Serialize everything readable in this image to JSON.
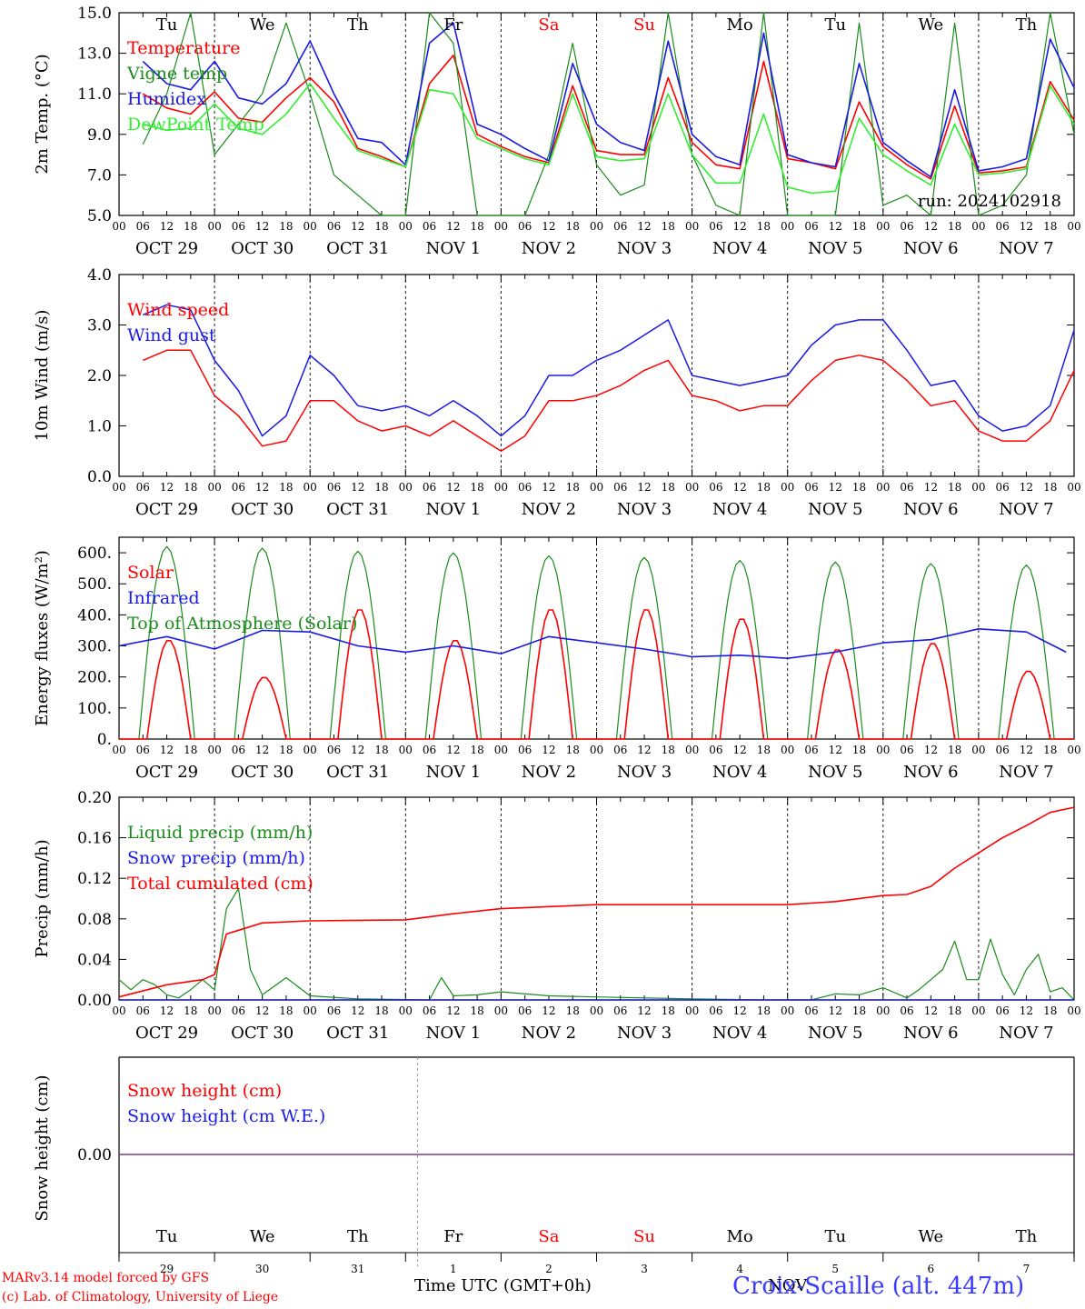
{
  "page": {
    "credit_line1": "MARv3.14 model forced by GFS",
    "credit_line2": "(c) Lab. of Climatology, University of Liege",
    "xaxis_title": "Time UTC (GMT+0h)",
    "station": "Croix-Scaille (alt. 447m)",
    "month_label": "NOV",
    "colors": {
      "red": "#ff0000",
      "green": "#1a8c1a",
      "blue": "#1a1ae6",
      "lime": "#33ee33",
      "purple": "#7a3a8c",
      "text": "#000000"
    }
  },
  "chart_data": [
    {
      "id": "temp",
      "type": "line",
      "ylabel": "2m Temp. (°C)",
      "ylim": [
        5.0,
        15.0
      ],
      "yticks": [
        "5.0",
        "7.0",
        "9.0",
        "11.0",
        "13.0",
        "15.0"
      ],
      "top_days": [
        "Tu",
        "We",
        "Th",
        "Fr",
        "Sa",
        "Su",
        "Mo",
        "Tu",
        "We",
        "Th"
      ],
      "weekend_days": [
        4,
        5
      ],
      "run_label": "run: 2024102918",
      "x_hours": [
        0,
        6,
        12,
        18,
        24,
        30,
        36,
        42,
        48,
        54,
        60,
        66,
        72,
        78,
        84,
        90,
        96,
        102,
        108,
        114,
        120,
        126,
        132,
        138,
        144,
        150,
        156,
        162,
        168,
        174,
        180,
        186,
        192,
        198,
        204,
        210,
        216,
        222,
        228,
        234
      ],
      "series": [
        {
          "name": "Temperature",
          "color": "#ff0000",
          "values": [
            11.0,
            10.3,
            10.0,
            11.1,
            9.8,
            9.6,
            10.8,
            11.8,
            10.6,
            8.3,
            7.9,
            7.4,
            11.5,
            12.9,
            9.0,
            8.4,
            7.9,
            7.6,
            11.4,
            8.2,
            8.0,
            8.0,
            11.8,
            8.6,
            7.5,
            7.3,
            12.6,
            7.8,
            7.6,
            7.3,
            10.6,
            8.4,
            7.5,
            6.8,
            10.4,
            7.1,
            7.2,
            7.4,
            11.6,
            9.7
          ]
        },
        {
          "name": "Vigne temp",
          "color": "#1a8c1a",
          "values": [
            8.5,
            11.0,
            15.0,
            8.0,
            9.5,
            11.0,
            14.5,
            11.0,
            7.0,
            6.0,
            5.0,
            5.0,
            15.0,
            13.5,
            5.0,
            5.0,
            5.0,
            8.0,
            13.5,
            7.5,
            6.0,
            6.5,
            15.0,
            8.0,
            5.5,
            5.0,
            15.0,
            5.0,
            5.0,
            5.0,
            14.5,
            5.5,
            6.0,
            5.0,
            14.5,
            5.0,
            5.5,
            7.0,
            15.0,
            9.0
          ]
        },
        {
          "name": "Humidex",
          "color": "#1a1ae6",
          "values": [
            12.6,
            11.5,
            11.2,
            12.6,
            10.8,
            10.5,
            11.5,
            13.6,
            11.0,
            8.8,
            8.6,
            7.5,
            13.5,
            14.5,
            9.5,
            9.0,
            8.3,
            7.7,
            12.5,
            9.5,
            8.6,
            8.2,
            13.6,
            9.0,
            7.9,
            7.5,
            14.0,
            8.0,
            7.6,
            7.4,
            12.5,
            8.6,
            7.7,
            6.9,
            11.2,
            7.2,
            7.4,
            7.8,
            13.7,
            11.3
          ]
        },
        {
          "name": "DewPoint Temp",
          "color": "#33ee33",
          "values": [
            9.5,
            9.2,
            9.3,
            10.5,
            9.3,
            9.0,
            10.0,
            11.5,
            9.8,
            8.2,
            7.8,
            7.4,
            11.2,
            11.0,
            8.8,
            8.3,
            7.8,
            7.5,
            11.0,
            7.9,
            7.7,
            7.8,
            11.0,
            8.0,
            6.6,
            6.6,
            10.0,
            6.4,
            6.1,
            6.2,
            9.8,
            8.0,
            7.2,
            6.5,
            9.5,
            7.0,
            7.1,
            7.3,
            11.4,
            9.5
          ]
        }
      ]
    },
    {
      "id": "wind",
      "type": "line",
      "ylabel": "10m Wind (m/s)",
      "ylim": [
        0.0,
        4.0
      ],
      "yticks": [
        "0.0",
        "1.0",
        "2.0",
        "3.0",
        "4.0"
      ],
      "x_hours": [
        0,
        6,
        12,
        18,
        24,
        30,
        36,
        42,
        48,
        54,
        60,
        66,
        72,
        78,
        84,
        90,
        96,
        102,
        108,
        114,
        120,
        126,
        132,
        138,
        144,
        150,
        156,
        162,
        168,
        174,
        180,
        186,
        192,
        198,
        204,
        210,
        216,
        222,
        228,
        234
      ],
      "series": [
        {
          "name": "Wind speed",
          "color": "#ff0000",
          "values": [
            2.3,
            2.5,
            2.5,
            1.6,
            1.2,
            0.6,
            0.7,
            1.5,
            1.5,
            1.1,
            0.9,
            1.0,
            0.8,
            1.1,
            0.8,
            0.5,
            0.8,
            1.5,
            1.5,
            1.6,
            1.8,
            2.1,
            2.3,
            1.6,
            1.5,
            1.3,
            1.4,
            1.4,
            1.9,
            2.3,
            2.4,
            2.3,
            1.9,
            1.4,
            1.5,
            0.9,
            0.7,
            0.7,
            1.1,
            2.1
          ]
        },
        {
          "name": "Wind gust",
          "color": "#1a1ae6",
          "values": [
            3.2,
            3.4,
            3.3,
            2.3,
            1.7,
            0.8,
            1.2,
            2.4,
            2.0,
            1.4,
            1.3,
            1.4,
            1.2,
            1.5,
            1.2,
            0.8,
            1.2,
            2.0,
            2.0,
            2.3,
            2.5,
            2.8,
            3.1,
            2.0,
            1.9,
            1.8,
            1.9,
            2.0,
            2.6,
            3.0,
            3.1,
            3.1,
            2.5,
            1.8,
            1.9,
            1.2,
            0.9,
            1.0,
            1.4,
            2.9
          ]
        }
      ]
    },
    {
      "id": "flux",
      "type": "line",
      "ylabel": "Energy fluxes (W/m²)",
      "ylim": [
        0,
        650
      ],
      "yticks": [
        "0.",
        "100.",
        "200.",
        "300.",
        "400.",
        "500.",
        "600."
      ],
      "ytick_values": [
        0,
        100,
        200,
        300,
        400,
        500,
        600
      ],
      "solar_peaks": [
        320,
        200,
        420,
        320,
        420,
        420,
        390,
        290,
        310,
        220
      ],
      "toa_peaks": [
        620,
        615,
        605,
        600,
        590,
        585,
        575,
        570,
        565,
        560
      ],
      "infrared_hours": [
        0,
        12,
        24,
        36,
        48,
        60,
        72,
        84,
        96,
        108,
        120,
        132,
        144,
        156,
        168,
        180,
        192,
        204,
        216,
        228,
        238
      ],
      "infrared_values": [
        300,
        330,
        290,
        350,
        345,
        300,
        280,
        300,
        275,
        330,
        310,
        290,
        265,
        270,
        260,
        280,
        310,
        320,
        355,
        345,
        280
      ],
      "series": [
        {
          "name": "Solar",
          "color": "#ff0000"
        },
        {
          "name": "Infrared",
          "color": "#1a1ae6"
        },
        {
          "name": "Top of Atmosphere (Solar)",
          "color": "#1a8c1a"
        }
      ]
    },
    {
      "id": "precip",
      "type": "line",
      "ylabel": "Precip (mm/h)",
      "ylim": [
        0.0,
        0.2
      ],
      "yticks": [
        "0.00",
        "0.04",
        "0.08",
        "0.12",
        "0.16",
        "0.20"
      ],
      "liquid_hours": [
        0,
        3,
        6,
        9,
        12,
        15,
        18,
        21,
        24,
        27,
        30,
        33,
        36,
        42,
        48,
        60,
        78,
        81,
        84,
        90,
        96,
        108,
        120,
        144,
        162,
        174,
        180,
        186,
        192,
        198,
        201,
        204,
        207,
        210,
        213,
        216,
        219,
        222,
        225,
        228,
        231,
        234,
        237,
        240
      ],
      "liquid_values": [
        0.02,
        0.01,
        0.02,
        0.015,
        0.005,
        0.002,
        0.01,
        0.02,
        0.01,
        0.09,
        0.11,
        0.03,
        0.005,
        0.022,
        0.004,
        0.001,
        0.0,
        0.022,
        0.004,
        0.005,
        0.008,
        0.004,
        0.003,
        0.001,
        0.0,
        0.0,
        0.006,
        0.005,
        0.012,
        0.002,
        0.01,
        0.02,
        0.03,
        0.058,
        0.02,
        0.02,
        0.06,
        0.025,
        0.005,
        0.03,
        0.045,
        0.008,
        0.012,
        0.0
      ],
      "cumulated_hours": [
        0,
        12,
        21,
        24,
        27,
        36,
        48,
        72,
        84,
        96,
        120,
        144,
        168,
        180,
        192,
        198,
        204,
        210,
        216,
        222,
        228,
        234,
        240
      ],
      "cumulated_values": [
        0.003,
        0.015,
        0.02,
        0.025,
        0.065,
        0.076,
        0.078,
        0.079,
        0.085,
        0.09,
        0.094,
        0.094,
        0.094,
        0.097,
        0.103,
        0.104,
        0.112,
        0.13,
        0.145,
        0.16,
        0.172,
        0.185,
        0.19
      ],
      "series": [
        {
          "name": "Liquid precip (mm/h)",
          "color": "#1a8c1a"
        },
        {
          "name": "Snow precip (mm/h)",
          "color": "#1a1ae6"
        },
        {
          "name": "Total cumulated (cm)",
          "color": "#ff0000"
        }
      ]
    },
    {
      "id": "snow",
      "type": "line",
      "ylabel": "Snow height (cm)",
      "ytick": "0.00",
      "day_numbers": [
        "29",
        "30",
        "31",
        "1",
        "2",
        "3",
        "4",
        "5",
        "6",
        "7"
      ],
      "series": [
        {
          "name": "Snow height (cm)",
          "color": "#ff0000"
        },
        {
          "name": "Snow height (cm W.E.)",
          "color": "#1a1ae6"
        }
      ]
    }
  ],
  "x_axis": {
    "hour_labels": [
      "00",
      "06",
      "12",
      "18"
    ],
    "final_label": "00",
    "date_labels": [
      "OCT 29",
      "OCT 30",
      "OCT 31",
      "NOV  1",
      "NOV  2",
      "NOV  3",
      "NOV  4",
      "NOV  5",
      "NOV  6",
      "NOV  7"
    ]
  }
}
